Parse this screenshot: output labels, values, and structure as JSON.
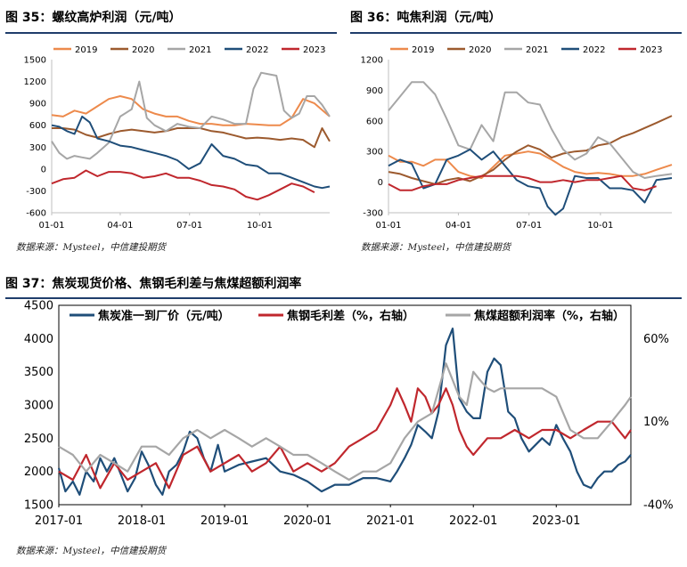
{
  "fig35": {
    "title": "图 35：螺纹高炉利润（元/吨）",
    "source": "数据来源：Mysteel，中信建投期货"
  },
  "fig36": {
    "title": "图 36：吨焦利润（元/吨）",
    "source": "数据来源：Mysteel，中信建投期货"
  },
  "fig37": {
    "title": "图 37：焦炭现货价格、焦钢毛利差与焦煤超额利润率",
    "source": "数据来源：Mysteel，中信建投期货"
  },
  "colors": {
    "y2019": "#ed8a4c",
    "y2020": "#9c5a2e",
    "y2021": "#a6a6a6",
    "y2022": "#1f4e79",
    "y2023": "#c0272d",
    "rule": "#1f3d6b"
  },
  "chart_data": [
    {
      "id": "fig35",
      "type": "line",
      "xlabel": "",
      "ylabel": "",
      "x_ticks": [
        "01-01",
        "04-01",
        "07-01",
        "10-01"
      ],
      "x_tick_days": [
        0,
        90,
        181,
        273
      ],
      "x_range_days": [
        0,
        365
      ],
      "ylim": [
        -600,
        1500
      ],
      "y_ticks": [
        -600,
        -300,
        0,
        300,
        600,
        900,
        1200,
        1500
      ],
      "grid": false,
      "legend_position": "top",
      "series": [
        {
          "name": "2019",
          "color_key": "y2019",
          "x": [
            0,
            15,
            30,
            45,
            60,
            75,
            90,
            105,
            120,
            135,
            150,
            165,
            180,
            195,
            210,
            225,
            240,
            255,
            270,
            285,
            300,
            315,
            330,
            345,
            365
          ],
          "y": [
            740,
            720,
            800,
            760,
            860,
            960,
            1000,
            960,
            820,
            760,
            720,
            720,
            660,
            620,
            620,
            600,
            600,
            620,
            610,
            600,
            600,
            700,
            960,
            900,
            720
          ]
        },
        {
          "name": "2020",
          "color_key": "y2020",
          "x": [
            0,
            15,
            30,
            45,
            60,
            75,
            90,
            105,
            120,
            135,
            150,
            165,
            180,
            195,
            210,
            225,
            240,
            255,
            270,
            285,
            300,
            315,
            330,
            345,
            355,
            365
          ],
          "y": [
            560,
            560,
            540,
            470,
            430,
            480,
            520,
            540,
            520,
            500,
            520,
            560,
            560,
            560,
            520,
            500,
            460,
            420,
            430,
            420,
            400,
            420,
            400,
            300,
            560,
            380
          ]
        },
        {
          "name": "2021",
          "color_key": "y2021",
          "x": [
            0,
            10,
            20,
            30,
            40,
            50,
            60,
            75,
            90,
            105,
            115,
            125,
            135,
            150,
            165,
            180,
            195,
            210,
            225,
            240,
            255,
            265,
            275,
            285,
            295,
            305,
            315,
            325,
            335,
            345,
            355,
            365
          ],
          "y": [
            380,
            220,
            140,
            180,
            160,
            140,
            220,
            360,
            720,
            820,
            1200,
            700,
            600,
            520,
            620,
            580,
            560,
            720,
            680,
            620,
            620,
            1100,
            1320,
            1300,
            1280,
            800,
            700,
            760,
            1000,
            1000,
            880,
            720
          ]
        },
        {
          "name": "2022",
          "color_key": "y2022",
          "x": [
            0,
            10,
            20,
            30,
            40,
            50,
            60,
            75,
            90,
            105,
            120,
            135,
            150,
            165,
            180,
            195,
            210,
            225,
            240,
            255,
            270,
            285,
            300,
            315,
            330,
            345,
            355,
            365
          ],
          "y": [
            600,
            580,
            520,
            480,
            720,
            640,
            420,
            380,
            320,
            300,
            260,
            220,
            180,
            120,
            0,
            80,
            340,
            180,
            140,
            60,
            40,
            -60,
            -60,
            -120,
            -180,
            -240,
            -260,
            -240
          ]
        },
        {
          "name": "2023",
          "color_key": "y2023",
          "x": [
            0,
            15,
            30,
            45,
            60,
            75,
            90,
            105,
            120,
            135,
            150,
            165,
            180,
            195,
            210,
            225,
            240,
            255,
            270,
            285,
            300,
            315,
            330,
            345
          ],
          "y": [
            -200,
            -140,
            -120,
            -20,
            -100,
            -40,
            -40,
            -60,
            -120,
            -100,
            -60,
            -120,
            -120,
            -160,
            -220,
            -240,
            -280,
            -380,
            -420,
            -360,
            -280,
            -200,
            -240,
            -320
          ]
        }
      ]
    },
    {
      "id": "fig36",
      "type": "line",
      "xlabel": "",
      "ylabel": "",
      "x_ticks": [
        "01-01",
        "04-01",
        "07-01",
        "10-01"
      ],
      "x_tick_days": [
        0,
        90,
        181,
        273
      ],
      "x_range_days": [
        0,
        365
      ],
      "ylim": [
        -300,
        1200
      ],
      "y_ticks": [
        -300,
        0,
        300,
        600,
        900,
        1200
      ],
      "grid": false,
      "legend_position": "top",
      "series": [
        {
          "name": "2019",
          "color_key": "y2019",
          "x": [
            0,
            15,
            30,
            45,
            60,
            75,
            90,
            105,
            120,
            135,
            150,
            165,
            180,
            195,
            210,
            225,
            240,
            255,
            270,
            285,
            300,
            315,
            330,
            345,
            365
          ],
          "y": [
            260,
            200,
            200,
            160,
            220,
            220,
            100,
            60,
            40,
            150,
            260,
            280,
            300,
            280,
            220,
            150,
            100,
            80,
            90,
            80,
            60,
            60,
            80,
            120,
            170
          ]
        },
        {
          "name": "2020",
          "color_key": "y2020",
          "x": [
            0,
            15,
            30,
            45,
            60,
            75,
            90,
            105,
            120,
            135,
            150,
            165,
            180,
            195,
            210,
            225,
            240,
            255,
            270,
            285,
            300,
            315,
            330,
            345,
            365
          ],
          "y": [
            100,
            80,
            40,
            10,
            -20,
            20,
            40,
            10,
            60,
            120,
            220,
            300,
            360,
            320,
            240,
            280,
            300,
            310,
            360,
            380,
            440,
            480,
            530,
            580,
            650
          ]
        },
        {
          "name": "2021",
          "color_key": "y2021",
          "x": [
            0,
            15,
            30,
            45,
            60,
            75,
            90,
            105,
            120,
            135,
            150,
            165,
            180,
            195,
            210,
            225,
            240,
            255,
            270,
            285,
            300,
            315,
            330,
            345,
            365
          ],
          "y": [
            700,
            840,
            980,
            980,
            860,
            620,
            360,
            320,
            560,
            400,
            880,
            880,
            780,
            760,
            520,
            320,
            220,
            280,
            440,
            380,
            240,
            100,
            40,
            60,
            80
          ]
        },
        {
          "name": "2022",
          "color_key": "y2022",
          "x": [
            0,
            15,
            30,
            45,
            60,
            75,
            90,
            105,
            120,
            135,
            150,
            165,
            180,
            195,
            205,
            215,
            225,
            240,
            255,
            270,
            285,
            300,
            315,
            330,
            345,
            365
          ],
          "y": [
            160,
            220,
            180,
            -60,
            -20,
            220,
            260,
            320,
            220,
            300,
            160,
            20,
            -40,
            -60,
            -240,
            -320,
            -260,
            60,
            40,
            40,
            -60,
            -60,
            -80,
            -200,
            20,
            40
          ]
        },
        {
          "name": "2023",
          "color_key": "y2023",
          "x": [
            0,
            15,
            30,
            45,
            60,
            75,
            90,
            105,
            120,
            135,
            150,
            165,
            180,
            195,
            210,
            225,
            240,
            255,
            270,
            285,
            300,
            315,
            330,
            345
          ],
          "y": [
            -20,
            -80,
            -80,
            -40,
            -20,
            -20,
            20,
            40,
            60,
            60,
            60,
            60,
            40,
            0,
            0,
            20,
            0,
            20,
            20,
            40,
            60,
            -60,
            -80,
            -40
          ]
        }
      ]
    },
    {
      "id": "fig37",
      "type": "line",
      "xlabel": "",
      "ylabel": "",
      "x_ticks": [
        "2017-01",
        "2018-01",
        "2019-01",
        "2020-01",
        "2021-01",
        "2022-01",
        "2023-01"
      ],
      "x_tick_years": [
        2017,
        2018,
        2019,
        2020,
        2021,
        2022,
        2023
      ],
      "x_range_years": [
        2017,
        2023.9
      ],
      "ylim": [
        1500,
        4500
      ],
      "y_ticks": [
        1500,
        2000,
        2500,
        3000,
        3500,
        4000,
        4500
      ],
      "y2lim": [
        -40,
        80
      ],
      "y2_ticks": [
        -40,
        10,
        60
      ],
      "y2_tick_labels": [
        "-40%",
        "10%",
        "60%"
      ],
      "grid": false,
      "legend_position": "top",
      "series": [
        {
          "name": "焦炭准一到厂价（元/吨）",
          "axis": "left",
          "color_key": "y2022",
          "x": [
            2017,
            2017.08,
            2017.17,
            2017.25,
            2017.33,
            2017.42,
            2017.5,
            2017.58,
            2017.67,
            2017.75,
            2017.83,
            2017.92,
            2018,
            2018.08,
            2018.17,
            2018.25,
            2018.33,
            2018.42,
            2018.5,
            2018.58,
            2018.67,
            2018.75,
            2018.83,
            2018.92,
            2019,
            2019.17,
            2019.33,
            2019.5,
            2019.67,
            2019.83,
            2020,
            2020.17,
            2020.33,
            2020.5,
            2020.67,
            2020.83,
            2021,
            2021.08,
            2021.17,
            2021.25,
            2021.33,
            2021.42,
            2021.5,
            2021.58,
            2021.67,
            2021.75,
            2021.83,
            2021.92,
            2022,
            2022.08,
            2022.17,
            2022.25,
            2022.33,
            2022.42,
            2022.5,
            2022.58,
            2022.67,
            2022.75,
            2022.83,
            2022.92,
            2023,
            2023.08,
            2023.17,
            2023.25,
            2023.33,
            2023.42,
            2023.5,
            2023.58,
            2023.67,
            2023.75,
            2023.83,
            2023.9
          ],
          "y": [
            2050,
            1700,
            1850,
            1650,
            2000,
            1850,
            2200,
            2000,
            2200,
            1950,
            1700,
            1900,
            2300,
            2100,
            1800,
            1650,
            2000,
            2100,
            2300,
            2600,
            2500,
            2200,
            2000,
            2400,
            2000,
            2100,
            2150,
            2200,
            2000,
            1950,
            1850,
            1700,
            1800,
            1800,
            1900,
            1900,
            1850,
            2000,
            2200,
            2400,
            2700,
            2600,
            2500,
            2900,
            3900,
            4150,
            3100,
            2900,
            2800,
            2800,
            3500,
            3700,
            3600,
            2900,
            2800,
            2500,
            2300,
            2400,
            2500,
            2400,
            2700,
            2500,
            2300,
            2000,
            1800,
            1750,
            1900,
            2000,
            2000,
            2100,
            2150,
            2250
          ]
        },
        {
          "name": "焦钢毛利差（%，右轴）",
          "axis": "right",
          "color_key": "y2023",
          "x": [
            2017,
            2017.17,
            2017.33,
            2017.5,
            2017.67,
            2017.83,
            2018,
            2018.17,
            2018.33,
            2018.5,
            2018.67,
            2018.83,
            2019,
            2019.17,
            2019.33,
            2019.5,
            2019.67,
            2019.83,
            2020,
            2020.17,
            2020.33,
            2020.5,
            2020.67,
            2020.83,
            2021,
            2021.08,
            2021.17,
            2021.25,
            2021.33,
            2021.42,
            2021.5,
            2021.58,
            2021.67,
            2021.75,
            2021.83,
            2021.92,
            2022,
            2022.17,
            2022.33,
            2022.5,
            2022.67,
            2022.83,
            2023,
            2023.17,
            2023.33,
            2023.5,
            2023.67,
            2023.75,
            2023.83,
            2023.9
          ],
          "y": [
            -20,
            -25,
            -10,
            -30,
            -15,
            -25,
            -20,
            -15,
            -30,
            -10,
            -5,
            -20,
            -15,
            -10,
            -20,
            -15,
            -5,
            -20,
            -15,
            -20,
            -15,
            -5,
            0,
            5,
            20,
            30,
            20,
            10,
            30,
            25,
            15,
            20,
            30,
            20,
            5,
            -5,
            -10,
            0,
            0,
            5,
            0,
            5,
            5,
            0,
            5,
            10,
            10,
            5,
            0,
            5
          ]
        },
        {
          "name": "焦煤超额利润率（%，右轴）",
          "axis": "right",
          "color_key": "y2021",
          "x": [
            2017,
            2017.17,
            2017.33,
            2017.5,
            2017.67,
            2017.83,
            2018,
            2018.17,
            2018.33,
            2018.5,
            2018.67,
            2018.83,
            2019,
            2019.17,
            2019.33,
            2019.5,
            2019.67,
            2019.83,
            2020,
            2020.17,
            2020.33,
            2020.5,
            2020.67,
            2020.83,
            2021,
            2021.17,
            2021.33,
            2021.5,
            2021.67,
            2021.75,
            2021.83,
            2021.92,
            2022,
            2022.08,
            2022.17,
            2022.25,
            2022.33,
            2022.5,
            2022.67,
            2022.83,
            2023,
            2023.17,
            2023.33,
            2023.5,
            2023.67,
            2023.75,
            2023.83,
            2023.9
          ],
          "y": [
            -5,
            -10,
            -20,
            -10,
            -15,
            -20,
            -5,
            -5,
            -10,
            0,
            5,
            0,
            5,
            0,
            -5,
            0,
            -5,
            -10,
            -10,
            -15,
            -20,
            -25,
            -20,
            -20,
            -15,
            0,
            10,
            15,
            45,
            35,
            25,
            20,
            40,
            35,
            30,
            28,
            30,
            30,
            30,
            30,
            25,
            5,
            0,
            0,
            10,
            15,
            20,
            25
          ]
        }
      ]
    }
  ]
}
